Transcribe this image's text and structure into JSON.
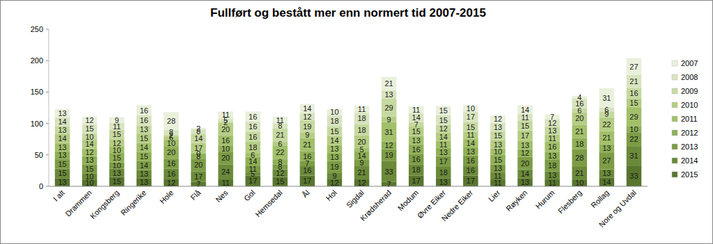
{
  "chart_data": {
    "type": "bar",
    "title": "Fullført og bestått mer enn normert tid 2007-2015",
    "categories": [
      "I alt",
      "Drammen",
      "Kongsberg",
      "Ringerike",
      "Hole",
      "Flå",
      "Nes",
      "Gol",
      "Hemsedal",
      "Ål",
      "Hol",
      "Sigdal",
      "Krødsherad",
      "Modum",
      "Øvre Eiker",
      "Nedre Eiker",
      "Lier",
      "Røyken",
      "Hurum",
      "Flesberg",
      "Rollag",
      "Nore og Uvdal"
    ],
    "series": [
      {
        "name": "2007",
        "color": "#e9f0db",
        "values": [
          13,
          12,
          9,
          16,
          28,
          2,
          11,
          16,
          11,
          14,
          10,
          11,
          21,
          11,
          15,
          10,
          12,
          14,
          7,
          4,
          31,
          27
        ]
      },
      {
        "name": "2008",
        "color": "#d8e4bf",
        "values": [
          14,
          15,
          11,
          16,
          8,
          8,
          5,
          16,
          8,
          12,
          18,
          18,
          13,
          14,
          15,
          17,
          13,
          11,
          12,
          16,
          6,
          21
        ]
      },
      {
        "name": "2009",
        "color": "#c6d9a0",
        "values": [
          13,
          10,
          15,
          13,
          2,
          14,
          2,
          16,
          21,
          19,
          15,
          18,
          29,
          7,
          12,
          15,
          15,
          15,
          13,
          6,
          9,
          16
        ]
      },
      {
        "name": "2010",
        "color": "#b5cd84",
        "values": [
          14,
          14,
          12,
          15,
          6,
          17,
          20,
          18,
          6,
          9,
          14,
          20,
          9,
          15,
          14,
          11,
          13,
          17,
          11,
          20,
          22,
          15
        ]
      },
      {
        "name": "2011",
        "color": "#a2c06a",
        "values": [
          13,
          12,
          10,
          14,
          10,
          0,
          16,
          6,
          22,
          21,
          13,
          5,
          31,
          13,
          11,
          14,
          10,
          13,
          16,
          21,
          21,
          29
        ]
      },
      {
        "name": "2012",
        "color": "#8fb056",
        "values": [
          13,
          13,
          15,
          15,
          20,
          8,
          10,
          14,
          8,
          16,
          13,
          14,
          12,
          16,
          13,
          13,
          15,
          12,
          13,
          18,
          13,
          10
        ]
      },
      {
        "name": "2013",
        "color": "#7c9c45",
        "values": [
          15,
          15,
          10,
          14,
          16,
          20,
          20,
          11,
          8,
          7,
          19,
          9,
          19,
          16,
          17,
          16,
          13,
          20,
          18,
          28,
          27,
          22
        ]
      },
      {
        "name": "2014",
        "color": "#6a8a39",
        "values": [
          15,
          10,
          13,
          13,
          16,
          17,
          24,
          5,
          12,
          16,
          9,
          21,
          33,
          18,
          18,
          16,
          11,
          14,
          13,
          21,
          13,
          31
        ]
      },
      {
        "name": "2015",
        "color": "#58752d",
        "values": [
          13,
          10,
          15,
          13,
          12,
          7,
          11,
          17,
          15,
          17,
          12,
          12,
          7,
          17,
          13,
          17,
          11,
          13,
          11,
          10,
          14,
          33
        ]
      }
    ],
    "ylim": [
      0,
      250
    ],
    "yticks": [
      0,
      50,
      100,
      150,
      200,
      250
    ],
    "stacked": true,
    "data_labels": true,
    "grid": false,
    "legend": "right"
  }
}
